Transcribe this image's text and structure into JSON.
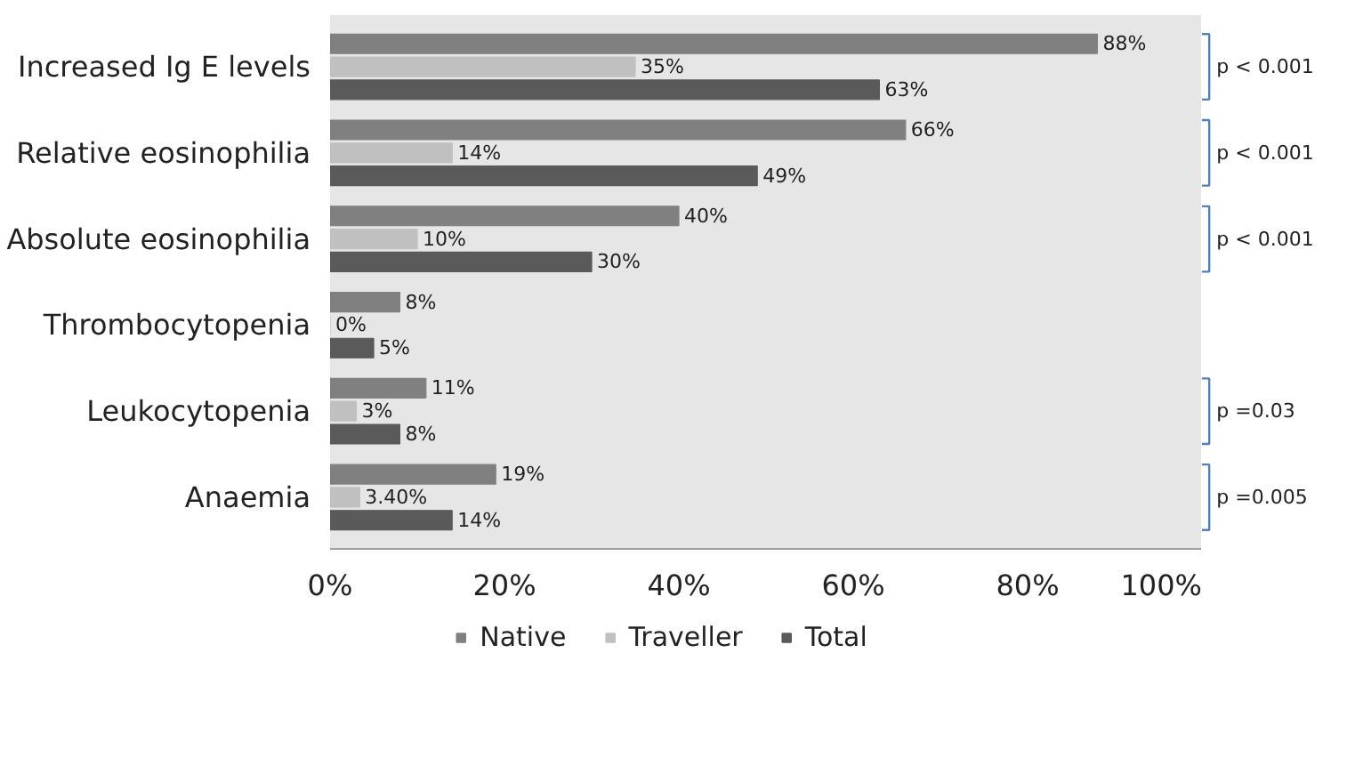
{
  "chart_data": {
    "type": "bar",
    "orientation": "horizontal",
    "categories": [
      "Increased Ig E levels",
      "Relative eosinophilia",
      "Absolute eosinophilia",
      "Thrombocytopenia",
      "Leukocytopenia",
      "Anaemia"
    ],
    "series": [
      {
        "name": "Native",
        "color": "#808080",
        "values": [
          88,
          66,
          40,
          8,
          11,
          19
        ],
        "value_labels": [
          "88%",
          "66%",
          "40%",
          "8%",
          "11%",
          "19%"
        ]
      },
      {
        "name": "Traveller",
        "color": "#c0c0c0",
        "values": [
          35,
          14,
          10,
          0,
          3,
          3.4
        ],
        "value_labels": [
          "35%",
          "14%",
          "10%",
          "0%",
          "3%",
          "3.40%"
        ]
      },
      {
        "name": "Total",
        "color": "#5a5a5a",
        "values": [
          63,
          49,
          30,
          5,
          8,
          14
        ],
        "value_labels": [
          "63%",
          "49%",
          "30%",
          "5%",
          "8%",
          "14%"
        ]
      }
    ],
    "xlim": [
      0,
      100
    ],
    "xticks": [
      {
        "value": 0,
        "label": "0%"
      },
      {
        "value": 20,
        "label": "20%"
      },
      {
        "value": 40,
        "label": "40%"
      },
      {
        "value": 60,
        "label": "60%"
      },
      {
        "value": 80,
        "label": "80%"
      },
      {
        "value": 100,
        "label": "100%"
      }
    ],
    "grid": false,
    "legend": "bottom",
    "annotations": [
      "p < 0.001",
      "p < 0.001",
      "p < 0.001",
      "p =0.03",
      "p =0.005"
    ]
  }
}
